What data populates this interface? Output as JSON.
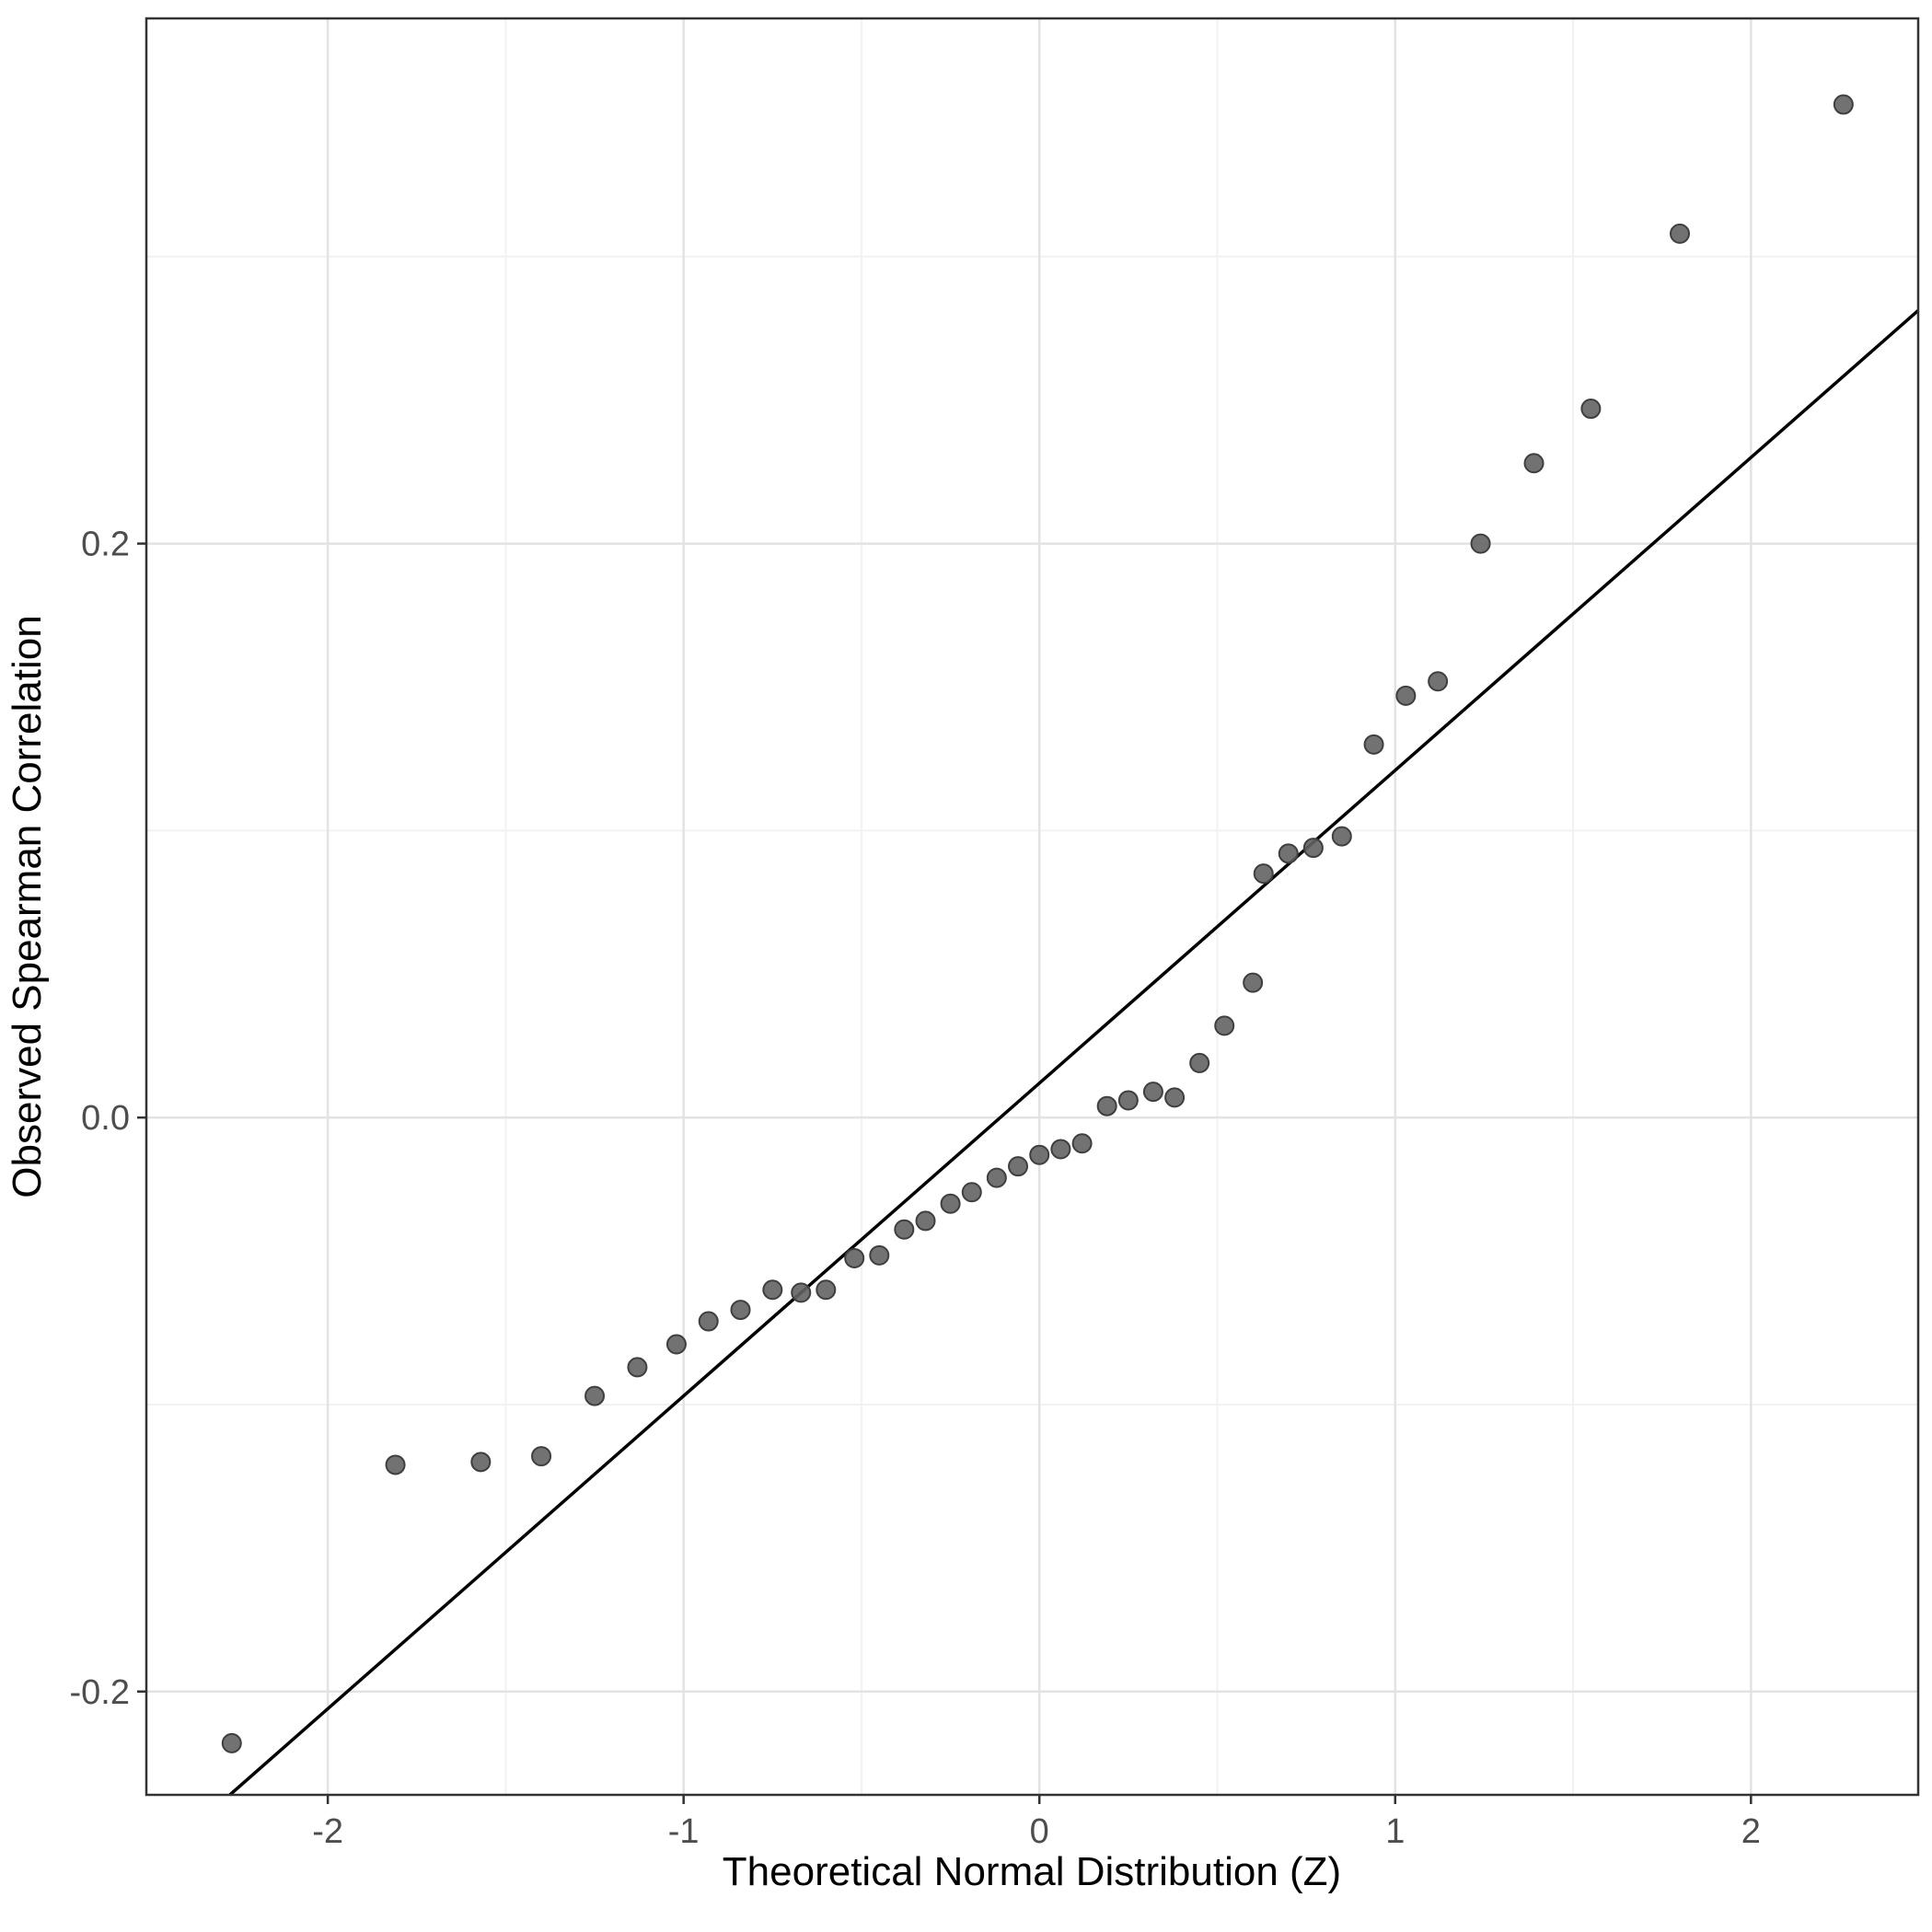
{
  "chart_data": {
    "type": "scatter",
    "title": "",
    "xlabel": "Theoretical Normal Distribution (Z)",
    "ylabel": "Observed Spearman Correlation",
    "xlim": [
      -2.51,
      2.47
    ],
    "ylim": [
      -0.236,
      0.383
    ],
    "x_ticks": [
      -2,
      -1,
      0,
      1,
      2
    ],
    "x_tick_labels": [
      "-2",
      "-1",
      "0",
      "1",
      "2"
    ],
    "y_ticks": [
      -0.2,
      0.0,
      0.2
    ],
    "y_tick_labels": [
      "-0.2",
      "0.0",
      "0.2"
    ],
    "x_minor_ticks": [
      -1.5,
      -0.5,
      0.5,
      1.5
    ],
    "y_minor_ticks": [
      -0.1,
      0.1,
      0.3
    ],
    "grid": true,
    "legend": "none",
    "points": [
      [
        -2.27,
        -0.218
      ],
      [
        -1.81,
        -0.121
      ],
      [
        -1.57,
        -0.12
      ],
      [
        -1.4,
        -0.118
      ],
      [
        -1.25,
        -0.097
      ],
      [
        -1.13,
        -0.087
      ],
      [
        -1.02,
        -0.079
      ],
      [
        -0.93,
        -0.071
      ],
      [
        -0.84,
        -0.067
      ],
      [
        -0.75,
        -0.06
      ],
      [
        -0.67,
        -0.061
      ],
      [
        -0.6,
        -0.06
      ],
      [
        -0.52,
        -0.049
      ],
      [
        -0.45,
        -0.048
      ],
      [
        -0.38,
        -0.039
      ],
      [
        -0.32,
        -0.036
      ],
      [
        -0.25,
        -0.03
      ],
      [
        -0.19,
        -0.026
      ],
      [
        -0.12,
        -0.021
      ],
      [
        -0.06,
        -0.017
      ],
      [
        0.0,
        -0.013
      ],
      [
        0.06,
        -0.011
      ],
      [
        0.12,
        -0.009
      ],
      [
        0.19,
        0.004
      ],
      [
        0.25,
        0.006
      ],
      [
        0.32,
        0.009
      ],
      [
        0.38,
        0.007
      ],
      [
        0.45,
        0.019
      ],
      [
        0.52,
        0.032
      ],
      [
        0.6,
        0.047
      ],
      [
        0.63,
        0.085
      ],
      [
        0.7,
        0.092
      ],
      [
        0.77,
        0.094
      ],
      [
        0.85,
        0.098
      ],
      [
        0.94,
        0.13
      ],
      [
        1.03,
        0.147
      ],
      [
        1.12,
        0.152
      ],
      [
        1.24,
        0.2
      ],
      [
        1.39,
        0.228
      ],
      [
        1.55,
        0.247
      ],
      [
        1.8,
        0.308
      ],
      [
        2.26,
        0.353
      ]
    ],
    "reference_line": {
      "slope": 0.109,
      "intercept": 0.012
    },
    "colors": {
      "background": "#ffffff",
      "panel_border": "#333333",
      "grid_major": "#e3e3e3",
      "grid_minor": "#f2f2f2",
      "point": "#636363",
      "point_stroke": "#3f3f3f",
      "line": "#000000",
      "tick_mark": "#333333",
      "tick_label": "#4d4d4d",
      "axis_title": "#000000"
    }
  }
}
